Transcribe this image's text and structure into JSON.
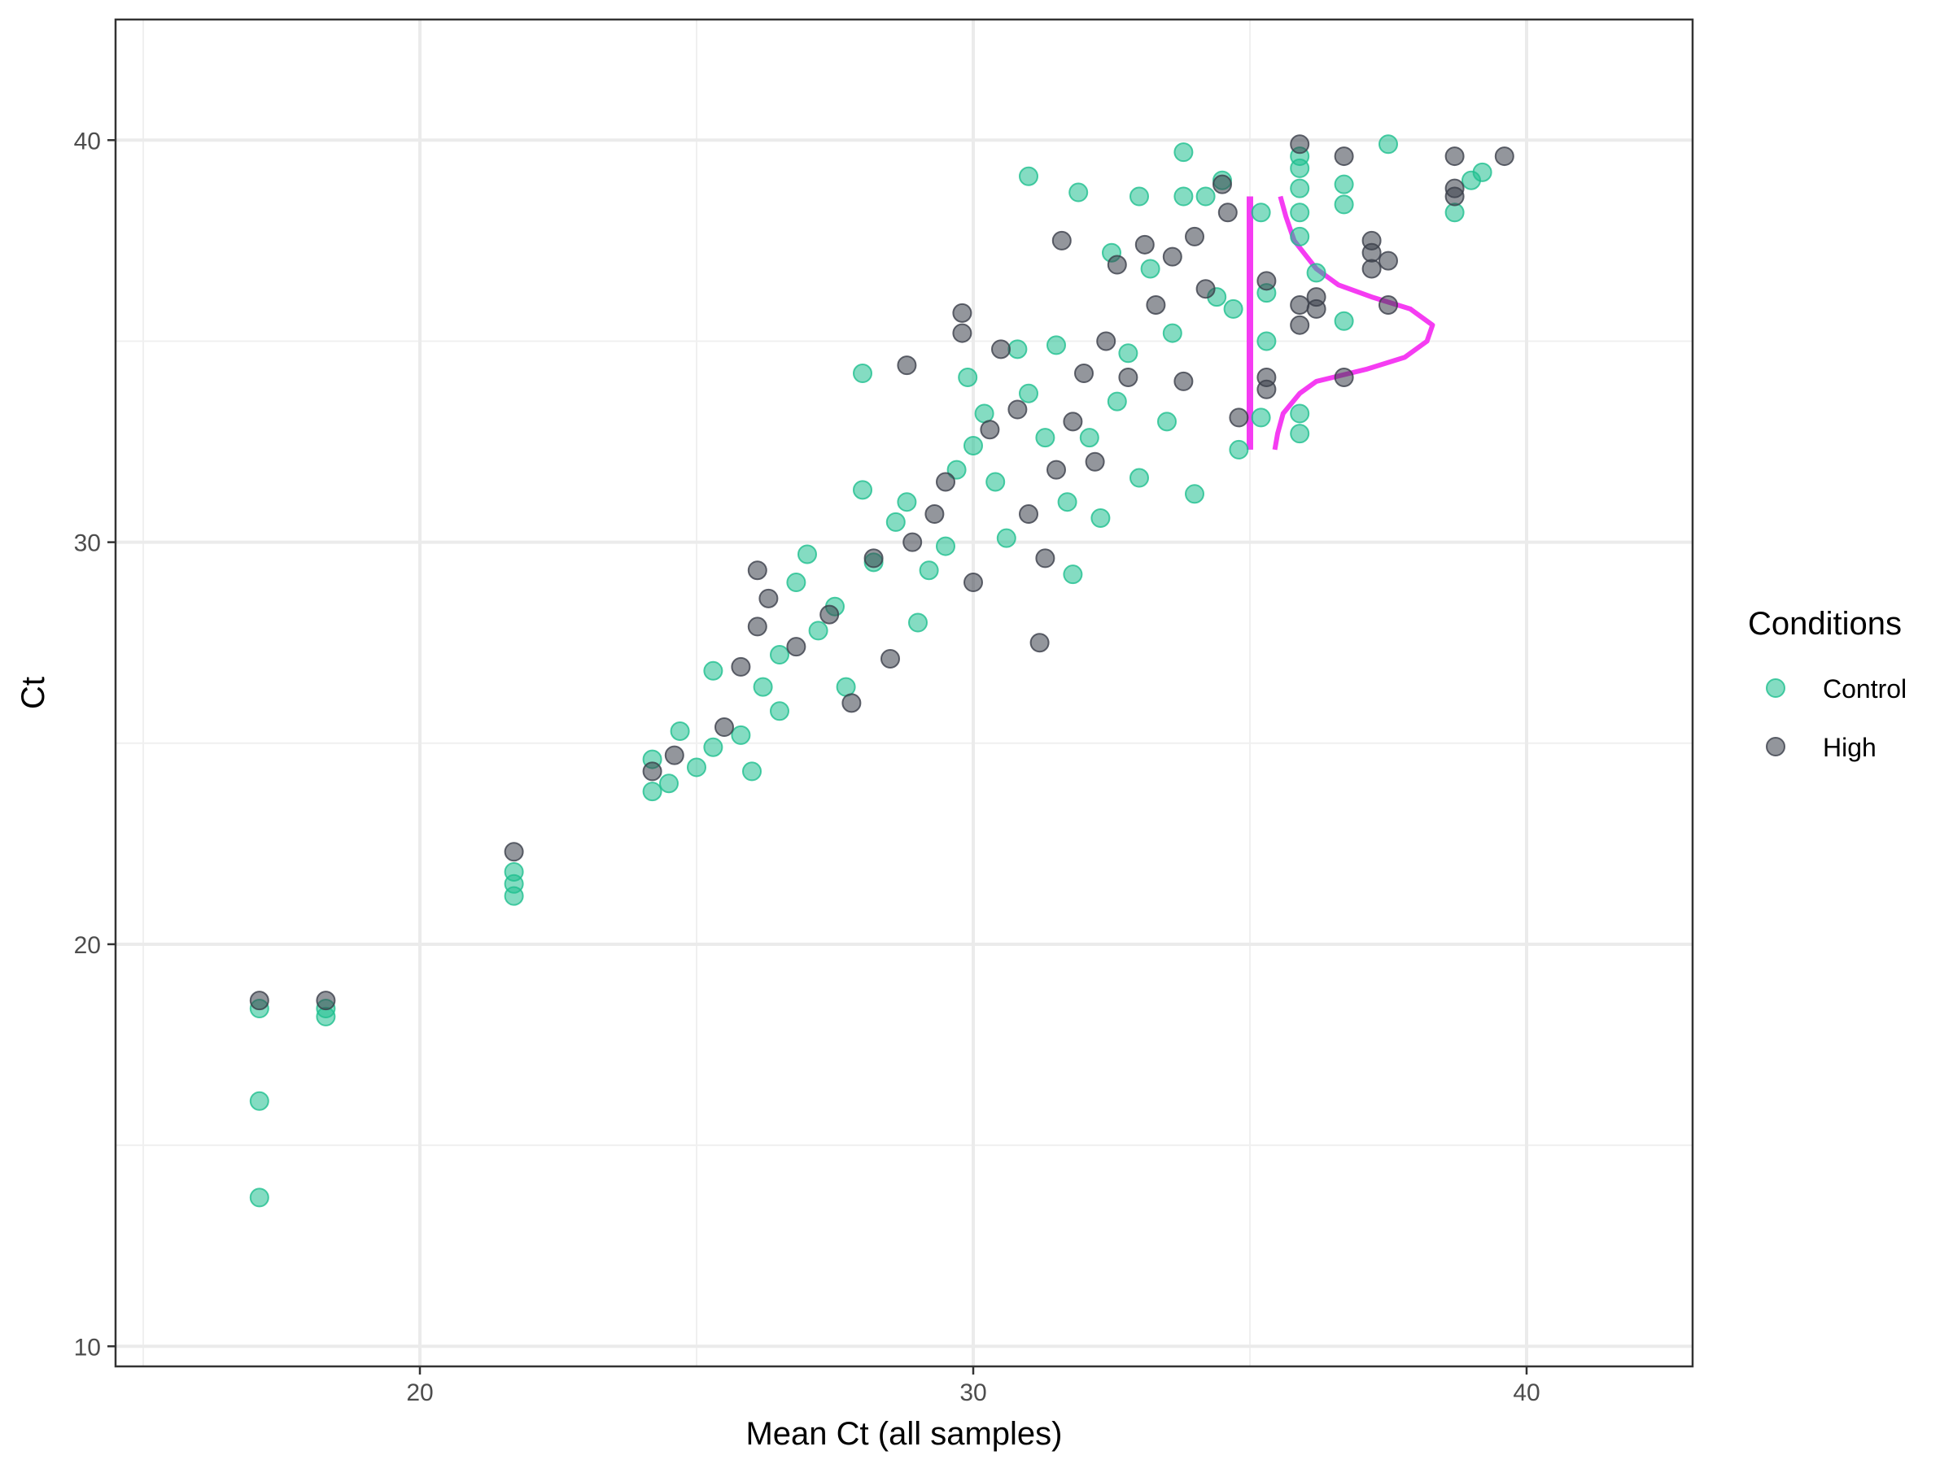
{
  "chart_data": {
    "type": "scatter",
    "xlabel": "Mean Ct (all samples)",
    "ylabel": "Ct",
    "xlim": [
      14.5,
      43
    ],
    "ylim": [
      9.5,
      43
    ],
    "x_ticks": [
      20,
      30,
      40
    ],
    "y_ticks": [
      10,
      20,
      30,
      40
    ],
    "grid": true,
    "legend": {
      "title": "Conditions",
      "placement": "right"
    },
    "series": [
      {
        "name": "Control",
        "color": "#1FBF8F",
        "points": [
          [
            17.1,
            18.4
          ],
          [
            17.1,
            16.1
          ],
          [
            17.1,
            13.7
          ],
          [
            18.3,
            18.2
          ],
          [
            18.3,
            18.4
          ],
          [
            21.7,
            21.2
          ],
          [
            21.7,
            21.5
          ],
          [
            21.7,
            21.8
          ],
          [
            24.2,
            23.8
          ],
          [
            24.2,
            24.6
          ],
          [
            24.5,
            24.0
          ],
          [
            24.7,
            25.3
          ],
          [
            25.0,
            24.4
          ],
          [
            25.3,
            24.9
          ],
          [
            25.3,
            26.8
          ],
          [
            25.8,
            25.2
          ],
          [
            26.0,
            24.3
          ],
          [
            26.2,
            26.4
          ],
          [
            26.5,
            25.8
          ],
          [
            26.5,
            27.2
          ],
          [
            26.8,
            29.0
          ],
          [
            27.0,
            29.7
          ],
          [
            27.2,
            27.8
          ],
          [
            27.5,
            28.4
          ],
          [
            27.7,
            26.4
          ],
          [
            28.0,
            31.3
          ],
          [
            28.2,
            29.5
          ],
          [
            28.0,
            34.2
          ],
          [
            28.6,
            30.5
          ],
          [
            28.8,
            31.0
          ],
          [
            29.0,
            28.0
          ],
          [
            29.2,
            29.3
          ],
          [
            29.5,
            29.9
          ],
          [
            29.7,
            31.8
          ],
          [
            29.9,
            34.1
          ],
          [
            30.0,
            32.4
          ],
          [
            30.2,
            33.2
          ],
          [
            30.4,
            31.5
          ],
          [
            30.6,
            30.1
          ],
          [
            30.8,
            34.8
          ],
          [
            31.0,
            33.7
          ],
          [
            31.0,
            39.1
          ],
          [
            31.3,
            32.6
          ],
          [
            31.5,
            34.9
          ],
          [
            31.7,
            31.0
          ],
          [
            31.8,
            29.2
          ],
          [
            31.9,
            38.7
          ],
          [
            32.1,
            32.6
          ],
          [
            32.3,
            30.6
          ],
          [
            32.5,
            37.2
          ],
          [
            32.6,
            33.5
          ],
          [
            32.8,
            34.7
          ],
          [
            33.0,
            38.6
          ],
          [
            33.0,
            31.6
          ],
          [
            33.2,
            36.8
          ],
          [
            33.5,
            33.0
          ],
          [
            33.6,
            35.2
          ],
          [
            33.8,
            39.7
          ],
          [
            33.8,
            38.6
          ],
          [
            34.0,
            31.2
          ],
          [
            34.2,
            38.6
          ],
          [
            34.4,
            36.1
          ],
          [
            34.5,
            39.0
          ],
          [
            34.7,
            35.8
          ],
          [
            34.8,
            32.3
          ],
          [
            35.2,
            38.2
          ],
          [
            35.2,
            33.1
          ],
          [
            35.3,
            36.2
          ],
          [
            35.3,
            35.0
          ],
          [
            35.9,
            39.6
          ],
          [
            35.9,
            39.3
          ],
          [
            35.9,
            38.8
          ],
          [
            35.9,
            38.2
          ],
          [
            35.9,
            37.6
          ],
          [
            35.9,
            33.2
          ],
          [
            35.9,
            32.7
          ],
          [
            36.2,
            36.7
          ],
          [
            36.7,
            38.9
          ],
          [
            36.7,
            38.4
          ],
          [
            36.7,
            35.5
          ],
          [
            37.5,
            39.9
          ],
          [
            38.7,
            38.2
          ],
          [
            39.0,
            39.0
          ],
          [
            39.2,
            39.2
          ]
        ]
      },
      {
        "name": "High",
        "color": "#3B3F4A",
        "points": [
          [
            17.1,
            18.6
          ],
          [
            18.3,
            18.6
          ],
          [
            21.7,
            22.3
          ],
          [
            24.2,
            24.3
          ],
          [
            24.6,
            24.7
          ],
          [
            25.5,
            25.4
          ],
          [
            25.8,
            26.9
          ],
          [
            26.1,
            29.3
          ],
          [
            26.1,
            27.9
          ],
          [
            26.3,
            28.6
          ],
          [
            26.8,
            27.4
          ],
          [
            27.4,
            28.2
          ],
          [
            27.8,
            26.0
          ],
          [
            28.2,
            29.6
          ],
          [
            28.5,
            27.1
          ],
          [
            28.8,
            34.4
          ],
          [
            28.9,
            30.0
          ],
          [
            29.3,
            30.7
          ],
          [
            29.5,
            31.5
          ],
          [
            29.8,
            35.7
          ],
          [
            29.8,
            35.2
          ],
          [
            30.0,
            29.0
          ],
          [
            30.3,
            32.8
          ],
          [
            30.5,
            34.8
          ],
          [
            30.8,
            33.3
          ],
          [
            31.0,
            30.7
          ],
          [
            31.2,
            27.5
          ],
          [
            31.3,
            29.6
          ],
          [
            31.5,
            31.8
          ],
          [
            31.6,
            37.5
          ],
          [
            31.8,
            33.0
          ],
          [
            32.0,
            34.2
          ],
          [
            32.2,
            32.0
          ],
          [
            32.4,
            35.0
          ],
          [
            32.6,
            36.9
          ],
          [
            32.8,
            34.1
          ],
          [
            33.1,
            37.4
          ],
          [
            33.3,
            35.9
          ],
          [
            33.6,
            37.1
          ],
          [
            33.8,
            34.0
          ],
          [
            34.0,
            37.6
          ],
          [
            34.2,
            36.3
          ],
          [
            34.5,
            38.9
          ],
          [
            34.6,
            38.2
          ],
          [
            34.8,
            33.1
          ],
          [
            35.3,
            36.5
          ],
          [
            35.3,
            34.1
          ],
          [
            35.3,
            33.8
          ],
          [
            35.9,
            39.9
          ],
          [
            35.9,
            35.9
          ],
          [
            35.9,
            35.4
          ],
          [
            36.2,
            35.8
          ],
          [
            36.2,
            36.1
          ],
          [
            36.7,
            39.6
          ],
          [
            36.7,
            34.1
          ],
          [
            37.2,
            37.5
          ],
          [
            37.2,
            37.2
          ],
          [
            37.2,
            36.8
          ],
          [
            37.5,
            37.0
          ],
          [
            37.5,
            35.9
          ],
          [
            38.7,
            39.6
          ],
          [
            38.7,
            38.8
          ],
          [
            38.7,
            38.6
          ],
          [
            39.6,
            39.6
          ]
        ]
      }
    ],
    "annotations": [
      {
        "type": "vertical-line",
        "x": 35.0,
        "y_range": [
          32.3,
          38.6
        ],
        "color": "#F53CF2"
      },
      {
        "type": "density-curve",
        "baseline_x": 35.0,
        "color": "#F53CF2",
        "curve": [
          [
            32.3,
            35.45
          ],
          [
            32.7,
            35.5
          ],
          [
            33.2,
            35.6
          ],
          [
            33.7,
            35.9
          ],
          [
            34.0,
            36.2
          ],
          [
            34.3,
            37.1
          ],
          [
            34.6,
            37.8
          ],
          [
            35.0,
            38.2
          ],
          [
            35.4,
            38.3
          ],
          [
            35.8,
            37.9
          ],
          [
            36.1,
            37.2
          ],
          [
            36.4,
            36.6
          ],
          [
            36.8,
            36.2
          ],
          [
            37.5,
            35.8
          ],
          [
            38.1,
            35.65
          ],
          [
            38.6,
            35.55
          ]
        ]
      }
    ]
  }
}
